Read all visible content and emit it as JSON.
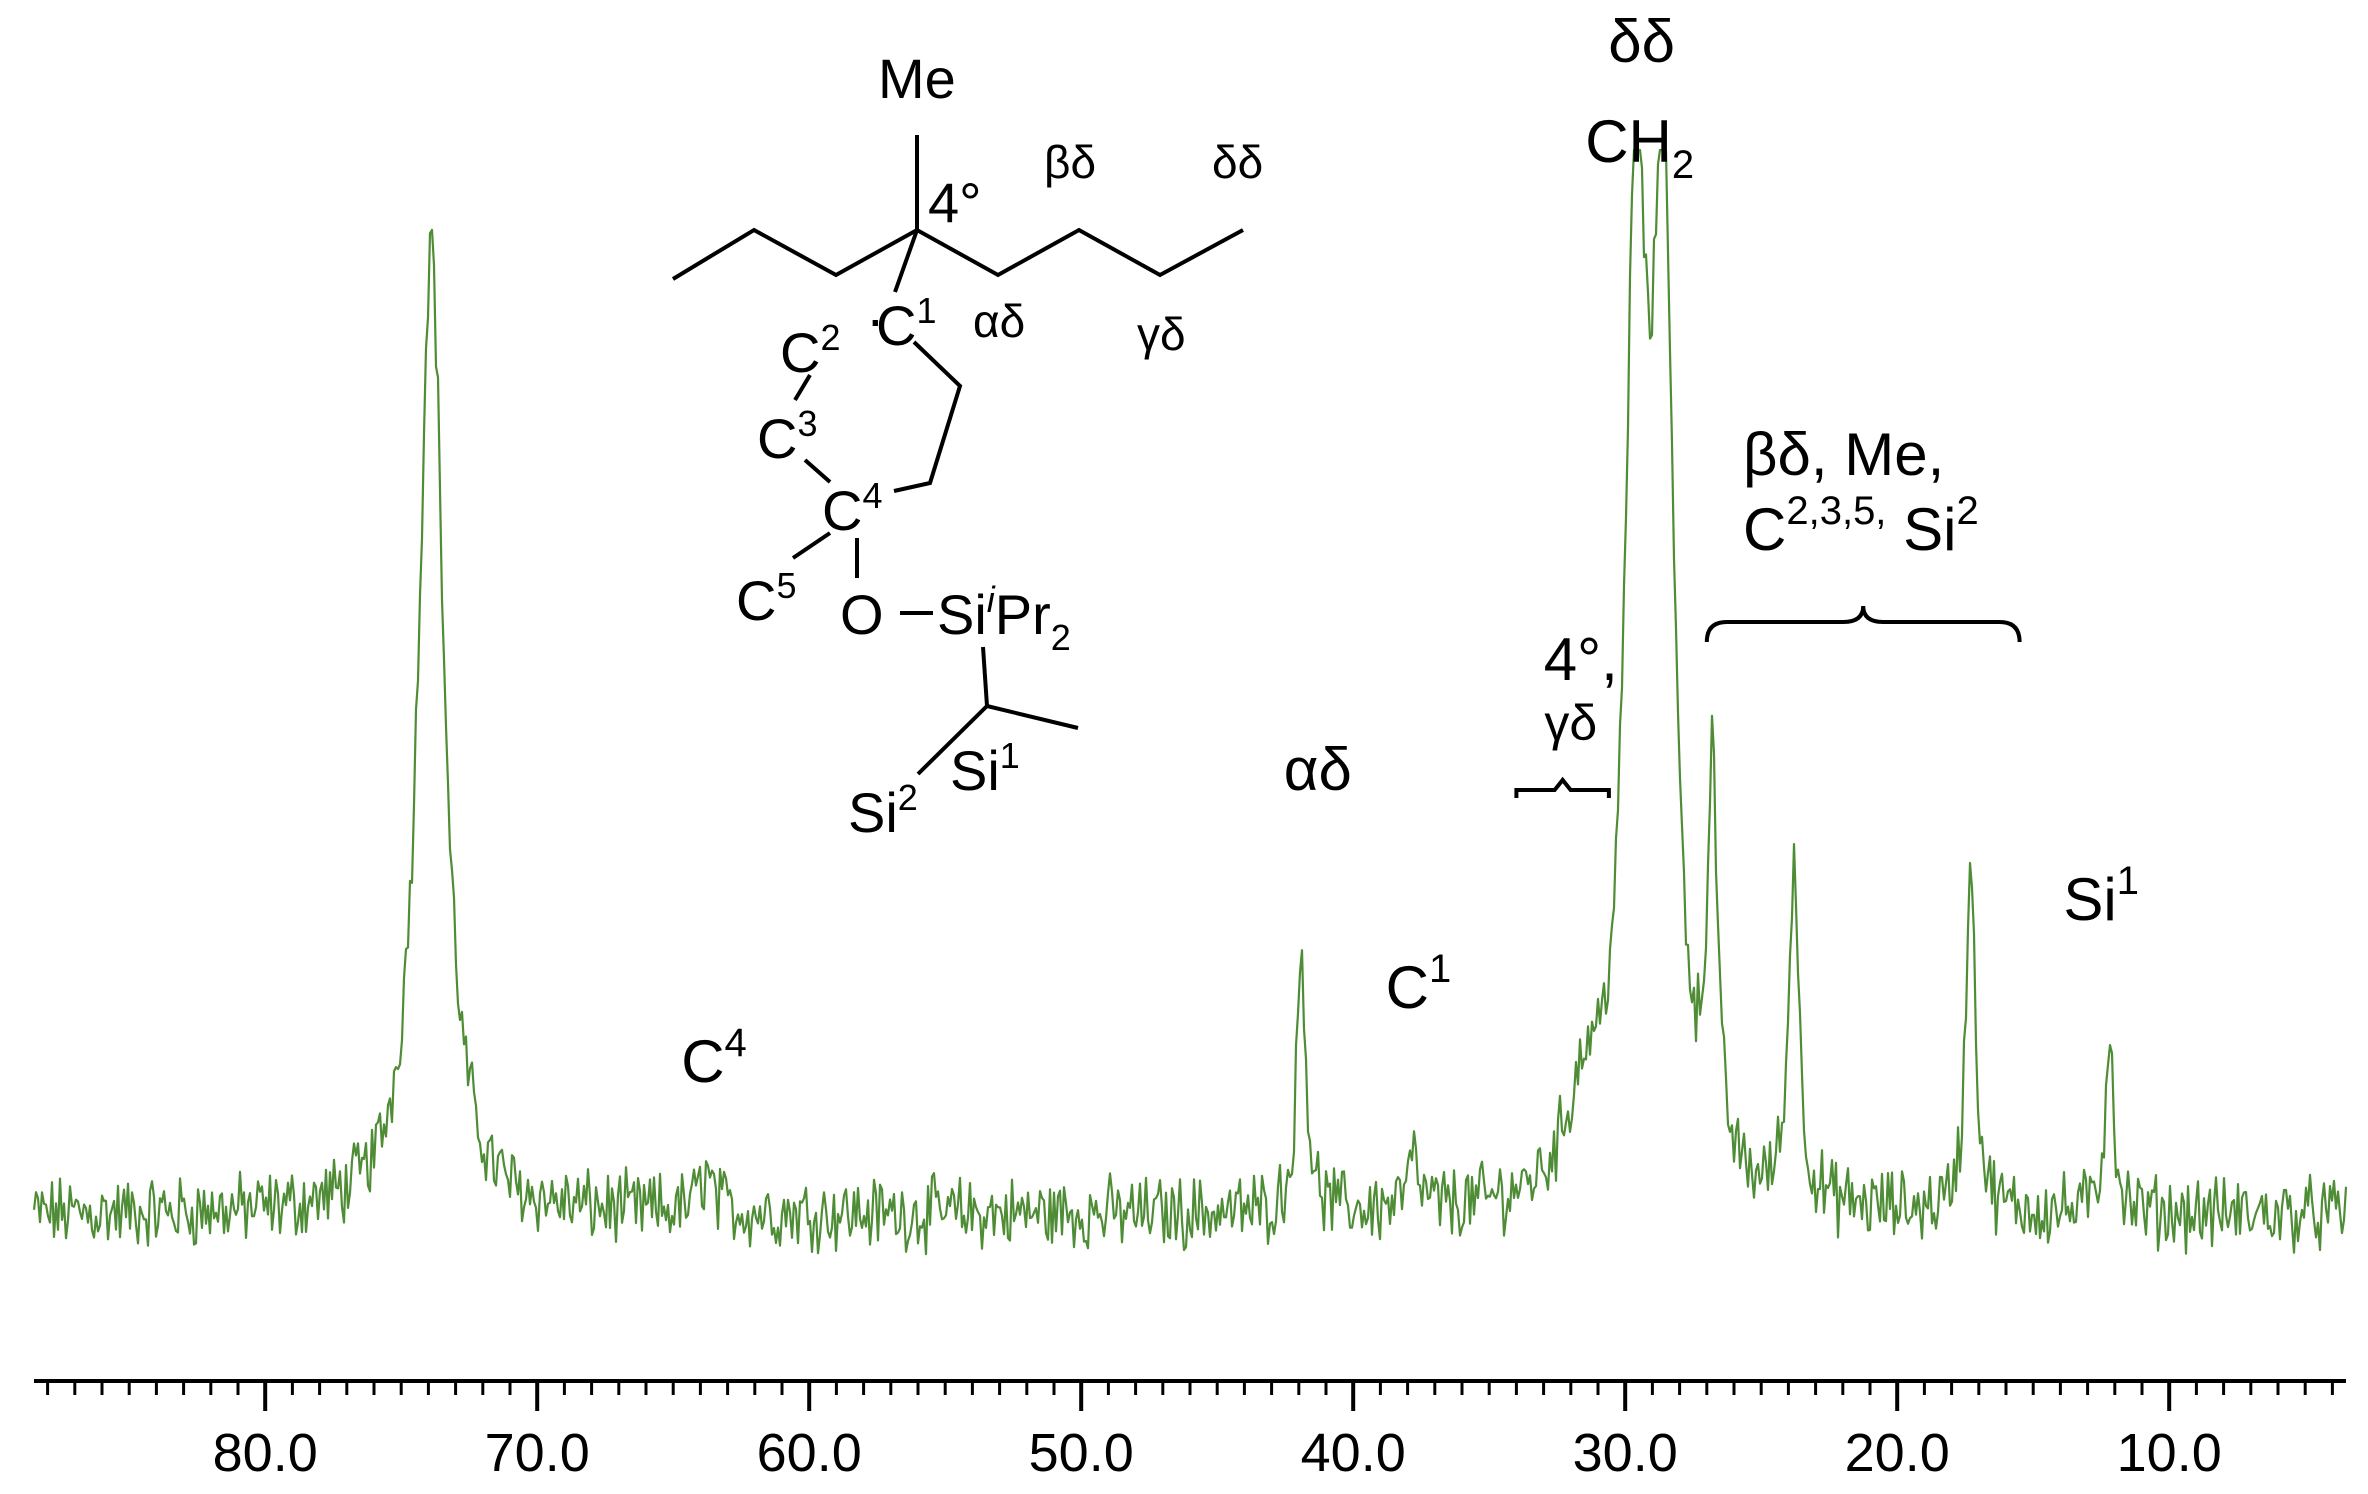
{
  "chart_data": {
    "type": "line",
    "title": "",
    "xlabel": "",
    "ylabel": "",
    "x_axis": {
      "reversed": true,
      "xlim": [
        88.5,
        3.5
      ],
      "tick_labels": [
        "80.0",
        "70.0",
        "60.0",
        "50.0",
        "40.0",
        "30.0",
        "20.0",
        "10.0"
      ],
      "tick_values": [
        80,
        70,
        60,
        50,
        40,
        30,
        20,
        10
      ],
      "minor_tick_step": 1
    },
    "y_axis": {
      "visible": false
    },
    "grid": false,
    "legend": "none",
    "series_color": "#4e8c35",
    "peaks": [
      {
        "x": 73.9,
        "height": 1.25,
        "width": 0.55
      },
      {
        "x": 63.8,
        "height": 0.05,
        "width": 0.3
      },
      {
        "x": 41.9,
        "height": 0.34,
        "width": 0.2
      },
      {
        "x": 37.8,
        "height": 0.06,
        "width": 0.25
      },
      {
        "x": 31.5,
        "height": 0.12,
        "width": 0.8
      },
      {
        "x": 29.6,
        "height": 1.25,
        "width": 0.45
      },
      {
        "x": 28.6,
        "height": 1.25,
        "width": 0.45
      },
      {
        "x": 26.8,
        "height": 0.5,
        "width": 0.22
      },
      {
        "x": 23.8,
        "height": 0.44,
        "width": 0.22
      },
      {
        "x": 17.3,
        "height": 0.46,
        "width": 0.2
      },
      {
        "x": 12.2,
        "height": 0.24,
        "width": 0.18
      }
    ],
    "annotations": [
      {
        "id": "c4",
        "label": "C",
        "sup": "4",
        "x": 63.5
      },
      {
        "id": "alpha-delta",
        "label": "αδ",
        "x": 41.3
      },
      {
        "id": "c1",
        "label": "C",
        "sup": "1",
        "x": 37.6
      },
      {
        "id": "quat-gamma",
        "label": "4°,",
        "label2": "γδ",
        "x": 32.0
      },
      {
        "id": "delta-delta",
        "label": "δδ",
        "label2": "CH",
        "sub": "2",
        "x": 29.1
      },
      {
        "id": "group",
        "label": "βδ, Me,",
        "label2": "C",
        "sup2": "2,3,5,",
        "label2b": " Si",
        "sup2b": "2",
        "x_range": [
          27.0,
          15.5
        ]
      },
      {
        "id": "si1",
        "label": "Si",
        "sup": "1",
        "x": 12.5
      }
    ]
  },
  "molecule": {
    "me": "Me",
    "quat": "4°",
    "beta_delta": "βδ",
    "delta_delta": "δδ",
    "alpha_delta": "αδ",
    "gamma_delta": "γδ",
    "c": "C",
    "c2": "2",
    "c1": "1",
    "c3": "3",
    "c4": "4",
    "c5": "5",
    "o": "O",
    "si": "Si",
    "i": "i",
    "pr": "Pr",
    "two": "2",
    "si1": "1",
    "si2": "2",
    "dot": "·"
  }
}
